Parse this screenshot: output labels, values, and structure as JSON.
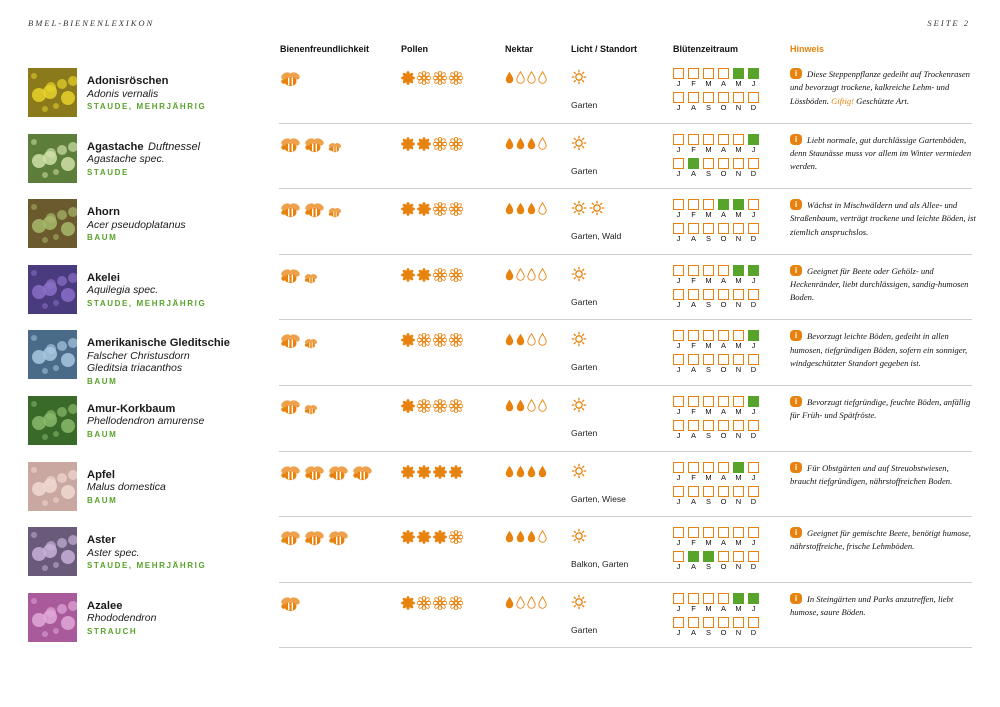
{
  "header": {
    "left": "BMEL-BIENENLEXIKON",
    "right": "SEITE 2"
  },
  "columns": {
    "bee_friendliness": "Bienenfreundlichkeit",
    "pollen": "Pollen",
    "nectar": "Nektar",
    "light": "Licht / Standort",
    "bloom": "Blütenzeitraum",
    "hint": "Hinweis"
  },
  "months_row1": [
    "J",
    "F",
    "M",
    "A",
    "M",
    "J"
  ],
  "months_row2": [
    "J",
    "A",
    "S",
    "O",
    "N",
    "D"
  ],
  "colors": {
    "accent_orange": "#e8820e",
    "accent_green": "#58a32a"
  },
  "icons": {
    "bee": "bee-icon",
    "pollen": "pollen-flower-icon",
    "nectar": "nectar-drop-icon",
    "light": "sun-icon",
    "hint": "info-icon"
  },
  "plants": [
    {
      "name": "Adonisröschen",
      "name_extra": "",
      "latin": "Adonis vernalis",
      "latin2": "",
      "category": "STAUDE, MEHRJÄHRIG",
      "bees": 1,
      "bees_small": 0,
      "pollen": 1,
      "nectar": 1,
      "suns": 1,
      "location": "Garten",
      "bloom": [
        0,
        0,
        0,
        0,
        1,
        1,
        0,
        0,
        0,
        0,
        0,
        0
      ],
      "hint": "Diese Steppenpflanze gedeiht auf Trockenrasen und bevorzugt trockene, kalkreiche Lehm- und Lössböden.",
      "hint_warning": "Giftig!",
      "hint_after": "Geschützte Art."
    },
    {
      "name": "Agastache",
      "name_extra": "Duftnessel",
      "latin": "Agastache spec.",
      "latin2": "",
      "category": "STAUDE",
      "bees": 2,
      "bees_small": 1,
      "pollen": 2,
      "nectar": 3,
      "suns": 1,
      "location": "Garten",
      "bloom": [
        0,
        0,
        0,
        0,
        0,
        1,
        0,
        1,
        0,
        0,
        0,
        0
      ],
      "hint": "Liebt normale, gut durchlässige Gartenböden, denn Staunässe muss vor allem im Winter vermieden werden.",
      "hint_warning": "",
      "hint_after": ""
    },
    {
      "name": "Ahorn",
      "name_extra": "",
      "latin": "Acer pseudoplatanus",
      "latin2": "",
      "category": "BAUM",
      "bees": 2,
      "bees_small": 1,
      "pollen": 2,
      "nectar": 3,
      "suns": 2,
      "location": "Garten, Wald",
      "bloom": [
        0,
        0,
        0,
        1,
        1,
        0,
        0,
        0,
        0,
        0,
        0,
        0
      ],
      "hint": "Wächst in Mischwäldern und als Allee- und Straßenbaum, verträgt trockene und leichte Böden, ist ziemlich anspruchslos.",
      "hint_warning": "",
      "hint_after": ""
    },
    {
      "name": "Akelei",
      "name_extra": "",
      "latin": "Aquilegia spec.",
      "latin2": "",
      "category": "STAUDE, MEHRJÄHRIG",
      "bees": 1,
      "bees_small": 1,
      "pollen": 2,
      "nectar": 1,
      "suns": 1,
      "location": "Garten",
      "bloom": [
        0,
        0,
        0,
        0,
        1,
        1,
        0,
        0,
        0,
        0,
        0,
        0
      ],
      "hint": "Geeignet für Beete oder Gehölz- und Heckenränder, liebt durchlässigen, sandig-humosen Boden.",
      "hint_warning": "",
      "hint_after": ""
    },
    {
      "name": "Amerikanische Gleditschie",
      "name_extra": "",
      "latin": "Falscher Christusdorn",
      "latin2": "Gleditsia triacanthos",
      "category": "BAUM",
      "bees": 1,
      "bees_small": 1,
      "pollen": 1,
      "nectar": 2,
      "suns": 1,
      "location": "Garten",
      "bloom": [
        0,
        0,
        0,
        0,
        0,
        1,
        0,
        0,
        0,
        0,
        0,
        0
      ],
      "hint": "Bevorzugt leichte Böden,  gedeiht in allen humosen, tiefgründigen Böden, sofern ein sonniger, windgeschützter Standort gegeben ist.",
      "hint_warning": "",
      "hint_after": ""
    },
    {
      "name": "Amur-Korkbaum",
      "name_extra": "",
      "latin": "Phellodendron amurense",
      "latin2": "",
      "category": "BAUM",
      "bees": 1,
      "bees_small": 1,
      "pollen": 1,
      "nectar": 2,
      "suns": 1,
      "location": "Garten",
      "bloom": [
        0,
        0,
        0,
        0,
        0,
        1,
        0,
        0,
        0,
        0,
        0,
        0
      ],
      "hint": "Bevorzugt tiefgründige, feuchte Böden, anfällig für Früh- und Spätfröste.",
      "hint_warning": "",
      "hint_after": ""
    },
    {
      "name": "Apfel",
      "name_extra": "",
      "latin": "Malus domestica",
      "latin2": "",
      "category": "BAUM",
      "bees": 4,
      "bees_small": 0,
      "pollen": 4,
      "nectar": 4,
      "suns": 1,
      "location": "Garten, Wiese",
      "bloom": [
        0,
        0,
        0,
        0,
        1,
        0,
        0,
        0,
        0,
        0,
        0,
        0
      ],
      "hint": "Für Obstgärten und auf Streuobstwiesen, braucht tiefgründigen, nährstoffreichen Boden.",
      "hint_warning": "",
      "hint_after": ""
    },
    {
      "name": "Aster",
      "name_extra": "",
      "latin": "Aster spec.",
      "latin2": "",
      "category": "STAUDE, MEHRJÄHRIG",
      "bees": 3,
      "bees_small": 0,
      "pollen": 3,
      "nectar": 3,
      "suns": 1,
      "location": "Balkon, Garten",
      "bloom": [
        0,
        0,
        0,
        0,
        0,
        0,
        0,
        1,
        1,
        0,
        0,
        0
      ],
      "hint": "Geeignet für gemischte Beete, benötigt humose, nährstoffreiche, frische Lehmböden.",
      "hint_warning": "",
      "hint_after": ""
    },
    {
      "name": "Azalee",
      "name_extra": "",
      "latin": "Rhododendron",
      "latin2": "",
      "category": "STRAUCH",
      "bees": 1,
      "bees_small": 0,
      "pollen": 1,
      "nectar": 1,
      "suns": 1,
      "location": "Garten",
      "bloom": [
        0,
        0,
        0,
        0,
        1,
        1,
        0,
        0,
        0,
        0,
        0,
        0
      ],
      "hint": "In Steingärten und Parks anzutreffen, liebt humose, saure Böden.",
      "hint_warning": "",
      "hint_after": ""
    }
  ]
}
